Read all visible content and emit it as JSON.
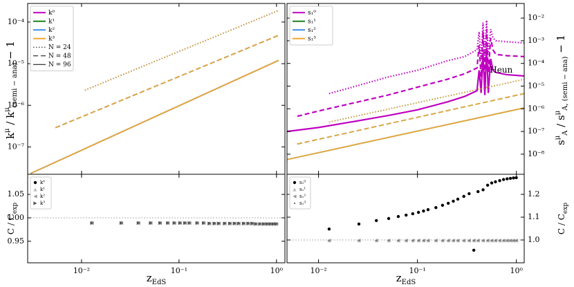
{
  "chart_data": [
    {
      "type": "line",
      "xscale": "log",
      "yscale": "log",
      "yaxis_side": "left",
      "legend": "upper left",
      "ylabel": [
        "k",
        "μ",
        " / k",
        "μ",
        "(semi − ana)",
        " − 1"
      ],
      "xlim": [
        0.0028,
        1.22
      ],
      "ylim": [
        2.2e-08,
        0.00028
      ],
      "xticks": [
        0.01,
        0.1,
        1
      ],
      "yticks": [
        {
          "value": 1e-07,
          "label": "10⁻⁷"
        },
        {
          "value": 1e-06,
          "label": "10⁻⁶"
        },
        {
          "value": 1e-05,
          "label": "10⁻⁵"
        },
        {
          "value": 0.0001,
          "label": "10⁻⁴"
        }
      ],
      "styles": [
        {
          "name": "N = 24",
          "dash": "dotted"
        },
        {
          "name": "N = 48",
          "dash": "dashed"
        },
        {
          "name": "N = 96",
          "dash": "solid"
        }
      ],
      "series": [
        {
          "name": "k⁰",
          "color": "#bf00bf",
          "lines": [
            {
              "x": [
                0.0108,
                1.05
              ],
              "values": [
                2.3e-06,
                0.00019
              ]
            },
            {
              "x": [
                0.0054,
                1.05
              ],
              "values": [
                2.9e-07,
                4.8e-05
              ]
            },
            {
              "x": [
                0.003,
                1.05
              ],
              "values": [
                2.3e-08,
                1.2e-05
              ]
            }
          ]
        },
        {
          "name": "k¹",
          "color": "#1a7f1a",
          "lines": [
            {
              "x": [
                0.0108,
                1.05
              ],
              "values": [
                2.3e-06,
                0.00019
              ]
            },
            {
              "x": [
                0.0054,
                1.05
              ],
              "values": [
                2.9e-07,
                4.8e-05
              ]
            },
            {
              "x": [
                0.003,
                1.05
              ],
              "values": [
                2.3e-08,
                1.2e-05
              ]
            }
          ]
        },
        {
          "name": "k²",
          "color": "#3a8ee6",
          "lines": [
            {
              "x": [
                0.0108,
                1.05
              ],
              "values": [
                2.3e-06,
                0.00019
              ]
            },
            {
              "x": [
                0.0054,
                1.05
              ],
              "values": [
                2.9e-07,
                4.8e-05
              ]
            },
            {
              "x": [
                0.003,
                1.05
              ],
              "values": [
                2.3e-08,
                1.2e-05
              ]
            }
          ]
        },
        {
          "name": "k³",
          "color": "#f0a830",
          "lines": [
            {
              "x": [
                0.0108,
                1.05
              ],
              "values": [
                2.3e-06,
                0.00019
              ]
            },
            {
              "x": [
                0.0054,
                1.05
              ],
              "values": [
                2.9e-07,
                4.8e-05
              ]
            },
            {
              "x": [
                0.003,
                1.05
              ],
              "values": [
                2.3e-08,
                1.2e-05
              ]
            }
          ]
        }
      ]
    },
    {
      "type": "line",
      "xscale": "log",
      "yscale": "log",
      "yaxis_side": "right",
      "legend": "upper left",
      "ylabel": [
        "s",
        "μ",
        "A",
        " / s",
        "μ",
        "A, (semi − ana)",
        " − 1"
      ],
      "annotation": "Heun",
      "xlim": [
        0.0048,
        1.2
      ],
      "ylim": [
        1.3e-09,
        0.044
      ],
      "xticks": [
        0.01,
        0.1,
        1
      ],
      "yticks": [
        {
          "value": 1e-08,
          "label": "10⁻⁸"
        },
        {
          "value": 1e-07,
          "label": "10⁻⁷"
        },
        {
          "value": 1e-06,
          "label": "10⁻⁶"
        },
        {
          "value": 1e-05,
          "label": "10⁻⁵"
        },
        {
          "value": 0.0001,
          "label": "10⁻⁴"
        },
        {
          "value": 0.001,
          "label": "10⁻³"
        },
        {
          "value": 0.01,
          "label": "10⁻²"
        }
      ],
      "styles": [
        {
          "dash": "dotted"
        },
        {
          "dash": "dashed"
        },
        {
          "dash": "solid"
        }
      ],
      "series": [
        {
          "name": "s₁⁰",
          "color": "#bf00bf",
          "lines": [
            {
              "x": [
                0.0128,
                0.02,
                0.05,
                0.1,
                0.2,
                0.3,
                0.4,
                0.42,
                0.44,
                0.46,
                0.48,
                0.5,
                0.52,
                0.55,
                0.58,
                0.62,
                0.8,
                1.2
              ],
              "values": [
                4.7e-06,
                8e-06,
                2.5e-05,
                5e-05,
                0.00013,
                0.0002,
                0.0004,
                0.0025,
                0.00016,
                0.0063,
                0.0002,
                0.008,
                0.00025,
                0.0032,
                0.0013,
                0.001,
                0.0009,
                0.0008
              ]
            },
            {
              "x": [
                0.0061,
                0.01,
                0.02,
                0.05,
                0.1,
                0.2,
                0.3,
                0.4,
                0.42,
                0.44,
                0.46,
                0.48,
                0.5,
                0.52,
                0.55,
                0.58,
                0.62,
                0.8,
                1.2
              ],
              "values": [
                4.7e-07,
                8e-07,
                1.6e-06,
                4e-06,
                9e-06,
                2e-05,
                3.5e-05,
                6.3e-05,
                0.00063,
                2.5e-05,
                0.0025,
                3.2e-05,
                0.0032,
                4e-05,
                0.0013,
                0.0004,
                0.00025,
                0.00022,
                0.0002
              ]
            },
            {
              "x": [
                0.0048,
                0.01,
                0.02,
                0.05,
                0.1,
                0.2,
                0.3,
                0.4,
                0.42,
                0.44,
                0.46,
                0.48,
                0.5,
                0.52,
                0.55,
                0.58,
                0.62,
                0.8,
                1.2
              ],
              "values": [
                1e-07,
                1.5e-07,
                2.5e-07,
                5e-07,
                9e-07,
                2e-06,
                3.5e-06,
                6.3e-06,
                5e-05,
                5e-06,
                0.0003,
                4e-06,
                0.0005,
                5e-06,
                0.00016,
                5e-05,
                4e-05,
                3.2e-05,
                2.8e-05
              ]
            }
          ]
        },
        {
          "name": "s₁¹",
          "color": "#1a7f1a",
          "lines": [
            {
              "x": [
                0.0128,
                1.2
              ],
              "values": [
                2.6e-07,
                2e-05
              ]
            },
            {
              "x": [
                0.0061,
                1.2
              ],
              "values": [
                2.8e-08,
                4.7e-06
              ]
            },
            {
              "x": [
                0.0048,
                1.2
              ],
              "values": [
                5.8e-09,
                1.1e-06
              ]
            }
          ]
        },
        {
          "name": "s₁²",
          "color": "#3a8ee6",
          "lines": [
            {
              "x": [
                0.0128,
                1.2
              ],
              "values": [
                2.6e-07,
                2e-05
              ]
            },
            {
              "x": [
                0.0061,
                1.2
              ],
              "values": [
                2.8e-08,
                4.7e-06
              ]
            },
            {
              "x": [
                0.0048,
                1.2
              ],
              "values": [
                5.8e-09,
                1.1e-06
              ]
            }
          ]
        },
        {
          "name": "s₁³",
          "color": "#f0a830",
          "lines": [
            {
              "x": [
                0.0128,
                1.2
              ],
              "values": [
                2.6e-07,
                2e-05
              ]
            },
            {
              "x": [
                0.0061,
                1.2
              ],
              "values": [
                2.8e-08,
                4.7e-06
              ]
            },
            {
              "x": [
                0.0048,
                1.2
              ],
              "values": [
                5.8e-09,
                1.1e-06
              ]
            }
          ]
        }
      ]
    },
    {
      "type": "scatter",
      "xscale": "log",
      "yscale": "linear",
      "yaxis_side": "left",
      "legend": "upper left",
      "ylabel": [
        "C / C",
        "exp"
      ],
      "xlabel": [
        "z",
        "EdS"
      ],
      "hline": 1,
      "xlim": [
        0.0028,
        1.22
      ],
      "ylim": [
        0.904,
        1.093
      ],
      "xticks": [
        {
          "value": 0.01,
          "label": "10⁻²"
        },
        {
          "value": 0.1,
          "label": "10⁻¹"
        },
        {
          "value": 1,
          "label": "10⁰"
        }
      ],
      "yticks": [
        0.95,
        {
          "value": 1,
          "label": "1.00"
        },
        1.05
      ],
      "x": [
        0.0128,
        0.0256,
        0.0384,
        0.0512,
        0.064,
        0.0768,
        0.0896,
        0.1024,
        0.1152,
        0.128,
        0.1536,
        0.1792,
        0.2048,
        0.2304,
        0.256,
        0.2944,
        0.3328,
        0.3712,
        0.4096,
        0.4608,
        0.512,
        0.5632,
        0.6144,
        0.6784,
        0.7424,
        0.8064,
        0.8704,
        0.9344,
        0.9984
      ],
      "series": [
        {
          "name": "k⁰",
          "color": "#000000",
          "marker": "o",
          "values": [
            0.989,
            0.989,
            0.989,
            0.989,
            0.989,
            0.989,
            0.989,
            0.989,
            0.989,
            0.989,
            0.989,
            0.989,
            0.988,
            0.988,
            0.988,
            0.988,
            0.988,
            0.988,
            0.988,
            0.988,
            0.988,
            0.988,
            0.987,
            0.987,
            0.987,
            0.987,
            0.987,
            0.987,
            0.987
          ]
        },
        {
          "name": "k¹",
          "color": "#bbbbbb",
          "marker": "^",
          "values": [
            0.989,
            0.989,
            0.989,
            0.989,
            0.989,
            0.989,
            0.989,
            0.989,
            0.989,
            0.989,
            0.989,
            0.989,
            0.988,
            0.988,
            0.988,
            0.988,
            0.988,
            0.988,
            0.988,
            0.988,
            0.988,
            0.988,
            0.987,
            0.987,
            0.987,
            0.987,
            0.987,
            0.987,
            0.987
          ]
        },
        {
          "name": "k²",
          "color": "#999999",
          "marker": "<",
          "values": [
            0.989,
            0.989,
            0.989,
            0.989,
            0.989,
            0.989,
            0.989,
            0.989,
            0.989,
            0.989,
            0.989,
            0.989,
            0.988,
            0.988,
            0.988,
            0.988,
            0.988,
            0.988,
            0.988,
            0.988,
            0.988,
            0.988,
            0.987,
            0.987,
            0.987,
            0.987,
            0.987,
            0.987,
            0.987
          ]
        },
        {
          "name": "k³",
          "color": "#555555",
          "marker": ">",
          "values": [
            0.989,
            0.989,
            0.989,
            0.989,
            0.989,
            0.989,
            0.989,
            0.989,
            0.989,
            0.989,
            0.989,
            0.989,
            0.988,
            0.988,
            0.988,
            0.988,
            0.988,
            0.988,
            0.988,
            0.988,
            0.988,
            0.988,
            0.987,
            0.987,
            0.987,
            0.987,
            0.987,
            0.987,
            0.987
          ]
        }
      ]
    },
    {
      "type": "scatter",
      "xscale": "log",
      "yscale": "linear",
      "yaxis_side": "right",
      "legend": "upper left",
      "ylabel": [
        "C / C",
        "exp"
      ],
      "xlabel": [
        "z",
        "EdS"
      ],
      "hline": 1,
      "xlim": [
        0.0048,
        1.2
      ],
      "ylim": [
        0.9,
        1.288
      ],
      "xticks": [
        {
          "value": 0.01,
          "label": "10⁻²"
        },
        {
          "value": 0.1,
          "label": "10⁻¹"
        },
        {
          "value": 1,
          "label": "10⁰"
        }
      ],
      "yticks": [
        {
          "value": 1,
          "label": "1.0"
        },
        1.1,
        1.2
      ],
      "x": [
        0.0128,
        0.0256,
        0.0384,
        0.0512,
        0.064,
        0.0768,
        0.0896,
        0.1024,
        0.1152,
        0.128,
        0.1536,
        0.1792,
        0.2048,
        0.2304,
        0.256,
        0.2944,
        0.3328,
        0.3712,
        0.4096,
        0.4608,
        0.512,
        0.5632,
        0.6144,
        0.6784,
        0.7424,
        0.8064,
        0.8704,
        0.9344,
        0.9984
      ],
      "series": [
        {
          "name": "s₁⁰",
          "color": "#000000",
          "marker": "o",
          "values": [
            1.048,
            1.07,
            1.085,
            1.094,
            1.103,
            1.109,
            1.115,
            1.121,
            1.127,
            1.133,
            1.142,
            1.152,
            1.161,
            1.17,
            1.179,
            1.191,
            1.203,
            0.955,
            1.212,
            1.22,
            1.24,
            1.25,
            1.255,
            1.26,
            1.265,
            1.268,
            1.27,
            1.272,
            1.273
          ]
        },
        {
          "name": "s₁¹",
          "color": "#bbbbbb",
          "marker": "^",
          "values": [
            0.998,
            0.998,
            0.998,
            0.998,
            0.998,
            0.998,
            0.998,
            0.998,
            0.998,
            0.998,
            0.998,
            0.998,
            0.998,
            0.998,
            0.998,
            0.998,
            0.998,
            0.998,
            0.998,
            0.998,
            0.998,
            0.998,
            0.998,
            0.998,
            0.998,
            0.998,
            0.998,
            0.998,
            0.998
          ]
        },
        {
          "name": "s₁²",
          "color": "#999999",
          "marker": "<",
          "values": [
            0.998,
            0.998,
            0.998,
            0.998,
            0.998,
            0.998,
            0.998,
            0.998,
            0.998,
            0.998,
            0.998,
            0.998,
            0.998,
            0.998,
            0.998,
            0.998,
            0.998,
            0.998,
            0.998,
            0.998,
            0.998,
            0.998,
            0.998,
            0.998,
            0.998,
            0.998,
            0.998,
            0.998,
            0.998
          ]
        },
        {
          "name": "s₁³",
          "color": "#777777",
          "marker": ".",
          "values": [
            0.998,
            0.998,
            0.998,
            0.998,
            0.998,
            0.998,
            0.998,
            0.998,
            0.998,
            0.998,
            0.998,
            0.998,
            0.998,
            0.998,
            0.998,
            0.998,
            0.998,
            0.998,
            0.998,
            0.998,
            0.998,
            0.998,
            0.998,
            0.998,
            0.998,
            0.998,
            0.998,
            0.998,
            0.998
          ]
        }
      ]
    }
  ]
}
